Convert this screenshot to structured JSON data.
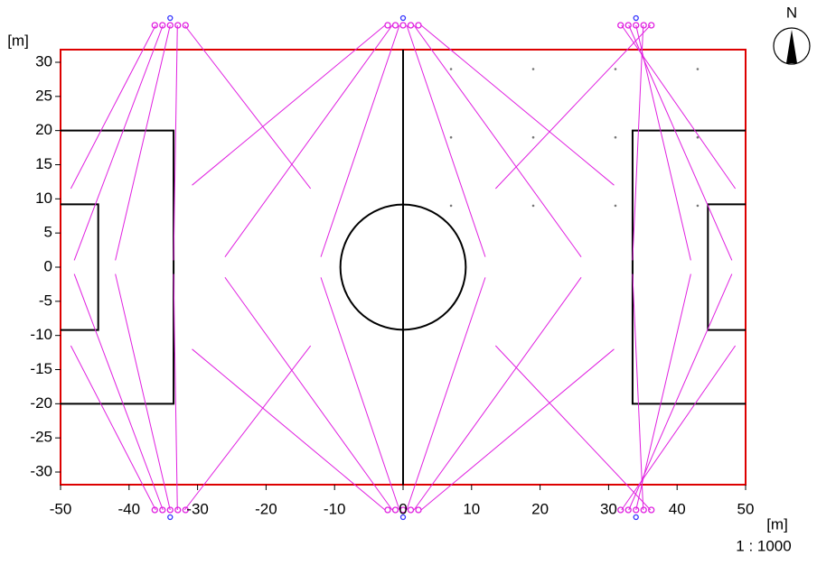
{
  "north": "N",
  "scale": "1 : 1000",
  "x_axis": {
    "unit": "[m]",
    "ticks": [
      -50,
      -40,
      -30,
      -20,
      -10,
      0,
      10,
      20,
      30,
      40,
      50
    ]
  },
  "y_axis": {
    "unit": "[m]",
    "ticks": [
      30,
      25,
      20,
      15,
      10,
      5,
      0,
      -5,
      -10,
      -15,
      -20,
      -25,
      -30
    ]
  }
}
